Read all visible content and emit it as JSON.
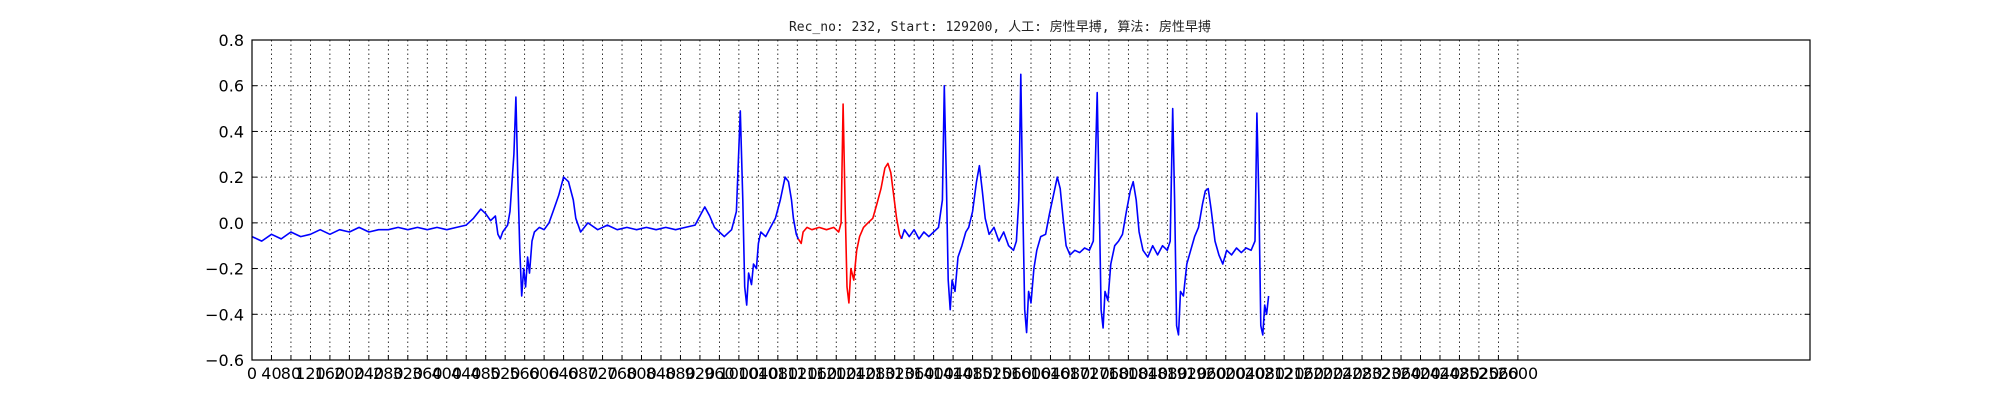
{
  "chart_data": {
    "type": "line",
    "title": "Rec_no: 232, Start: 129200, 人工: 房性早搏, 算法: 房性早搏",
    "xlabel": "",
    "ylabel": "",
    "xlim": [
      0,
      3200
    ],
    "ylim": [
      -0.6,
      0.8
    ],
    "grid": true,
    "x_tick_labels": [
      "0",
      "40",
      "80",
      "120",
      "160",
      "200",
      "240",
      "280",
      "320",
      "360",
      "400",
      "440",
      "480",
      "520",
      "560",
      "600",
      "640",
      "680",
      "720",
      "760",
      "800",
      "840",
      "880",
      "920",
      "960",
      "1000",
      "1040",
      "1080",
      "1120",
      "1160",
      "1200",
      "1240",
      "1280",
      "1320",
      "1360",
      "1400",
      "1440",
      "1480",
      "1520",
      "1560",
      "1600",
      "1640",
      "1680",
      "1720",
      "1760",
      "1800",
      "1840",
      "1880",
      "1920",
      "1960",
      "2000",
      "2040",
      "2080",
      "2120",
      "2160",
      "2200",
      "2240",
      "2280",
      "2320",
      "2360",
      "2400",
      "2440",
      "2480",
      "2520",
      "2560",
      "2600"
    ],
    "y_tick_labels": [
      "0.8",
      "0.6",
      "0.4",
      "0.2",
      "0.0",
      "−0.2",
      "−0.4",
      "−0.6"
    ],
    "y_tick_values": [
      0.8,
      0.6,
      0.4,
      0.2,
      0.0,
      -0.2,
      -0.4,
      -0.6
    ],
    "series": [
      {
        "color": "#0000ff",
        "points": [
          [
            0,
            -0.06
          ],
          [
            20,
            -0.08
          ],
          [
            40,
            -0.05
          ],
          [
            60,
            -0.07
          ],
          [
            80,
            -0.04
          ],
          [
            100,
            -0.06
          ],
          [
            120,
            -0.05
          ],
          [
            140,
            -0.03
          ],
          [
            160,
            -0.05
          ],
          [
            180,
            -0.03
          ],
          [
            200,
            -0.04
          ],
          [
            220,
            -0.02
          ],
          [
            240,
            -0.04
          ],
          [
            260,
            -0.03
          ],
          [
            280,
            -0.03
          ],
          [
            300,
            -0.02
          ],
          [
            320,
            -0.03
          ],
          [
            340,
            -0.02
          ],
          [
            360,
            -0.03
          ],
          [
            380,
            -0.02
          ],
          [
            400,
            -0.03
          ],
          [
            420,
            -0.02
          ],
          [
            440,
            -0.01
          ],
          [
            455,
            0.02
          ],
          [
            470,
            0.06
          ],
          [
            480,
            0.04
          ],
          [
            490,
            0.01
          ],
          [
            500,
            0.03
          ],
          [
            505,
            -0.05
          ],
          [
            510,
            -0.07
          ],
          [
            515,
            -0.04
          ],
          [
            525,
            -0.01
          ],
          [
            530,
            0.05
          ],
          [
            538,
            0.3
          ],
          [
            542,
            0.55
          ],
          [
            546,
            0.2
          ],
          [
            550,
            -0.12
          ],
          [
            554,
            -0.32
          ],
          [
            558,
            -0.2
          ],
          [
            562,
            -0.28
          ],
          [
            566,
            -0.15
          ],
          [
            570,
            -0.22
          ],
          [
            575,
            -0.08
          ],
          [
            580,
            -0.04
          ],
          [
            590,
            -0.02
          ],
          [
            600,
            -0.03
          ],
          [
            610,
            0.0
          ],
          [
            620,
            0.06
          ],
          [
            630,
            0.12
          ],
          [
            640,
            0.2
          ],
          [
            650,
            0.18
          ],
          [
            660,
            0.1
          ],
          [
            665,
            0.02
          ],
          [
            675,
            -0.04
          ],
          [
            690,
            0.0
          ],
          [
            710,
            -0.03
          ],
          [
            730,
            -0.01
          ],
          [
            750,
            -0.03
          ],
          [
            770,
            -0.02
          ],
          [
            790,
            -0.03
          ],
          [
            810,
            -0.02
          ],
          [
            830,
            -0.03
          ],
          [
            850,
            -0.02
          ],
          [
            870,
            -0.03
          ],
          [
            890,
            -0.02
          ],
          [
            910,
            -0.01
          ],
          [
            920,
            0.03
          ],
          [
            930,
            0.07
          ],
          [
            940,
            0.03
          ],
          [
            950,
            -0.02
          ],
          [
            960,
            -0.04
          ],
          [
            970,
            -0.06
          ],
          [
            985,
            -0.03
          ],
          [
            995,
            0.05
          ],
          [
            1003,
            0.49
          ],
          [
            1008,
            0.1
          ],
          [
            1012,
            -0.28
          ],
          [
            1016,
            -0.36
          ],
          [
            1020,
            -0.22
          ],
          [
            1026,
            -0.27
          ],
          [
            1030,
            -0.18
          ],
          [
            1036,
            -0.2
          ],
          [
            1040,
            -0.09
          ],
          [
            1045,
            -0.04
          ],
          [
            1055,
            -0.06
          ],
          [
            1065,
            -0.02
          ],
          [
            1075,
            0.02
          ],
          [
            1085,
            0.1
          ],
          [
            1095,
            0.2
          ],
          [
            1102,
            0.18
          ],
          [
            1108,
            0.1
          ],
          [
            1112,
            0.02
          ],
          [
            1118,
            -0.05
          ],
          [
            1122,
            -0.07
          ]
        ]
      },
      {
        "color": "#ff0000",
        "points": [
          [
            1122,
            -0.07
          ],
          [
            1128,
            -0.09
          ],
          [
            1132,
            -0.04
          ],
          [
            1140,
            -0.02
          ],
          [
            1150,
            -0.03
          ],
          [
            1165,
            -0.02
          ],
          [
            1180,
            -0.03
          ],
          [
            1195,
            -0.02
          ],
          [
            1205,
            -0.04
          ],
          [
            1210,
            0.0
          ],
          [
            1214,
            0.52
          ],
          [
            1218,
            0.1
          ],
          [
            1222,
            -0.28
          ],
          [
            1226,
            -0.35
          ],
          [
            1230,
            -0.2
          ],
          [
            1236,
            -0.25
          ],
          [
            1242,
            -0.12
          ],
          [
            1248,
            -0.06
          ],
          [
            1256,
            -0.02
          ],
          [
            1265,
            0.0
          ],
          [
            1275,
            0.02
          ],
          [
            1283,
            0.08
          ],
          [
            1292,
            0.15
          ],
          [
            1300,
            0.24
          ],
          [
            1306,
            0.26
          ],
          [
            1312,
            0.22
          ],
          [
            1318,
            0.12
          ],
          [
            1324,
            0.02
          ],
          [
            1330,
            -0.05
          ],
          [
            1334,
            -0.07
          ]
        ]
      },
      {
        "color": "#0000ff",
        "points": [
          [
            1334,
            -0.07
          ],
          [
            1340,
            -0.03
          ],
          [
            1350,
            -0.06
          ],
          [
            1360,
            -0.03
          ],
          [
            1370,
            -0.07
          ],
          [
            1380,
            -0.04
          ],
          [
            1390,
            -0.06
          ],
          [
            1400,
            -0.04
          ],
          [
            1410,
            -0.02
          ],
          [
            1418,
            0.1
          ],
          [
            1422,
            0.6
          ],
          [
            1426,
            0.2
          ],
          [
            1430,
            -0.25
          ],
          [
            1434,
            -0.38
          ],
          [
            1438,
            -0.25
          ],
          [
            1444,
            -0.3
          ],
          [
            1450,
            -0.15
          ],
          [
            1458,
            -0.1
          ],
          [
            1466,
            -0.04
          ],
          [
            1472,
            -0.02
          ],
          [
            1480,
            0.05
          ],
          [
            1488,
            0.18
          ],
          [
            1494,
            0.25
          ],
          [
            1500,
            0.14
          ],
          [
            1506,
            0.02
          ],
          [
            1514,
            -0.05
          ],
          [
            1524,
            -0.02
          ],
          [
            1534,
            -0.08
          ],
          [
            1544,
            -0.04
          ],
          [
            1554,
            -0.1
          ],
          [
            1564,
            -0.12
          ],
          [
            1570,
            -0.08
          ],
          [
            1575,
            0.1
          ],
          [
            1579,
            0.65
          ],
          [
            1583,
            0.1
          ],
          [
            1587,
            -0.38
          ],
          [
            1591,
            -0.48
          ],
          [
            1595,
            -0.3
          ],
          [
            1600,
            -0.35
          ],
          [
            1606,
            -0.2
          ],
          [
            1612,
            -0.12
          ],
          [
            1620,
            -0.06
          ],
          [
            1630,
            -0.05
          ],
          [
            1638,
            0.04
          ],
          [
            1646,
            0.12
          ],
          [
            1654,
            0.2
          ],
          [
            1660,
            0.15
          ],
          [
            1666,
            0.02
          ],
          [
            1672,
            -0.1
          ],
          [
            1680,
            -0.14
          ],
          [
            1690,
            -0.12
          ],
          [
            1700,
            -0.13
          ],
          [
            1710,
            -0.11
          ],
          [
            1720,
            -0.12
          ],
          [
            1728,
            -0.08
          ],
          [
            1732,
            0.25
          ],
          [
            1736,
            0.57
          ],
          [
            1740,
            0.1
          ],
          [
            1744,
            -0.38
          ],
          [
            1748,
            -0.46
          ],
          [
            1752,
            -0.3
          ],
          [
            1758,
            -0.34
          ],
          [
            1764,
            -0.18
          ],
          [
            1772,
            -0.1
          ],
          [
            1780,
            -0.08
          ],
          [
            1788,
            -0.05
          ],
          [
            1796,
            0.05
          ],
          [
            1804,
            0.14
          ],
          [
            1810,
            0.18
          ],
          [
            1816,
            0.1
          ],
          [
            1822,
            -0.04
          ],
          [
            1830,
            -0.12
          ],
          [
            1840,
            -0.15
          ],
          [
            1850,
            -0.1
          ],
          [
            1860,
            -0.14
          ],
          [
            1870,
            -0.1
          ],
          [
            1880,
            -0.12
          ],
          [
            1886,
            -0.08
          ],
          [
            1891,
            0.5
          ],
          [
            1895,
            0.1
          ],
          [
            1899,
            -0.45
          ],
          [
            1903,
            -0.49
          ],
          [
            1907,
            -0.3
          ],
          [
            1913,
            -0.32
          ],
          [
            1920,
            -0.18
          ],
          [
            1928,
            -0.12
          ],
          [
            1936,
            -0.06
          ],
          [
            1944,
            -0.02
          ],
          [
            1952,
            0.08
          ],
          [
            1958,
            0.14
          ],
          [
            1964,
            0.15
          ],
          [
            1970,
            0.06
          ],
          [
            1978,
            -0.08
          ],
          [
            1986,
            -0.14
          ],
          [
            1994,
            -0.18
          ],
          [
            2002,
            -0.12
          ],
          [
            2012,
            -0.14
          ],
          [
            2022,
            -0.11
          ],
          [
            2032,
            -0.13
          ],
          [
            2042,
            -0.11
          ],
          [
            2052,
            -0.12
          ],
          [
            2060,
            -0.08
          ],
          [
            2064,
            0.48
          ],
          [
            2068,
            0.1
          ],
          [
            2072,
            -0.45
          ],
          [
            2076,
            -0.49
          ],
          [
            2080,
            -0.36
          ],
          [
            2084,
            -0.4
          ],
          [
            2088,
            -0.32
          ]
        ]
      }
    ]
  }
}
